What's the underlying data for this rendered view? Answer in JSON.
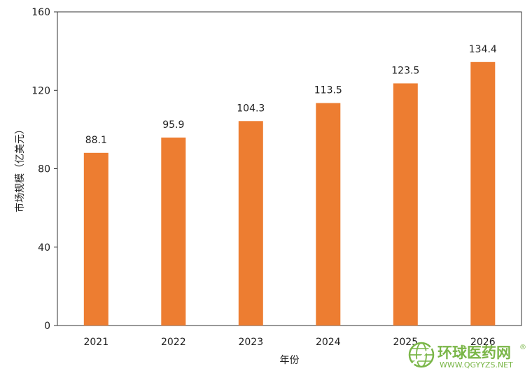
{
  "chart_data": {
    "type": "bar",
    "title": "",
    "xlabel": "年份",
    "ylabel": "市场规模（亿美元）",
    "categories": [
      "2021",
      "2022",
      "2023",
      "2024",
      "2025",
      "2026"
    ],
    "values": [
      88.1,
      95.9,
      104.3,
      113.5,
      123.5,
      134.4
    ],
    "data_labels": [
      "88.1",
      "95.9",
      "104.3",
      "113.5",
      "123.5",
      "134.4"
    ],
    "ylim": [
      0,
      160
    ],
    "yticks": [
      0,
      40,
      80,
      120,
      160
    ],
    "yticks_labels": [
      "0",
      "40",
      "80",
      "120",
      "160"
    ],
    "grid": false,
    "legend": "none",
    "bar_color": "#ED7D31"
  },
  "watermark": {
    "brand_cn": "环球医药网",
    "brand_en": "WWW.QGYYZS.NET",
    "registered": "®",
    "color": "#7AB648"
  }
}
